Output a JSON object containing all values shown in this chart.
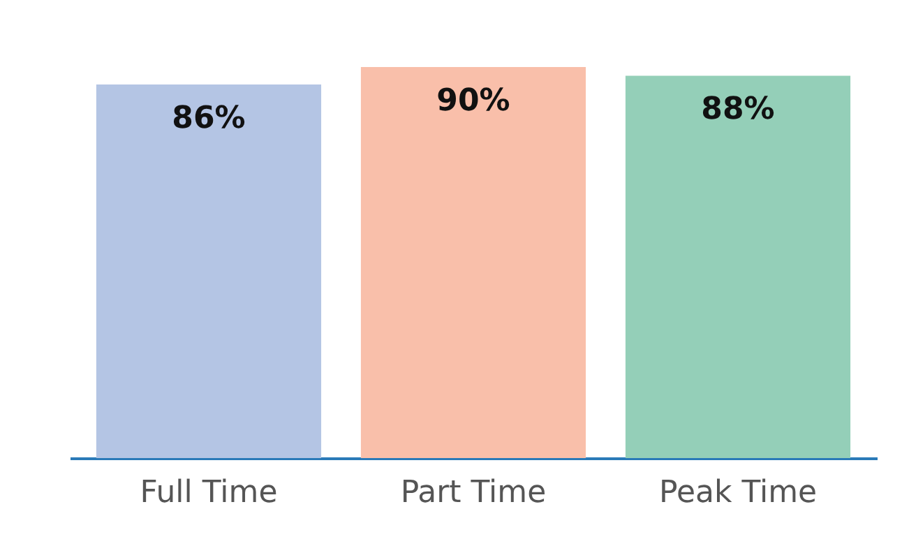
{
  "chart_data": {
    "type": "bar",
    "categories": [
      "Full Time",
      "Part Time",
      "Peak Time"
    ],
    "values": [
      86,
      90,
      88
    ],
    "colors": [
      "#b4c5e4",
      "#f9bfaa",
      "#94cfb8"
    ],
    "value_labels": [
      "86%",
      "90%",
      "88%"
    ]
  }
}
